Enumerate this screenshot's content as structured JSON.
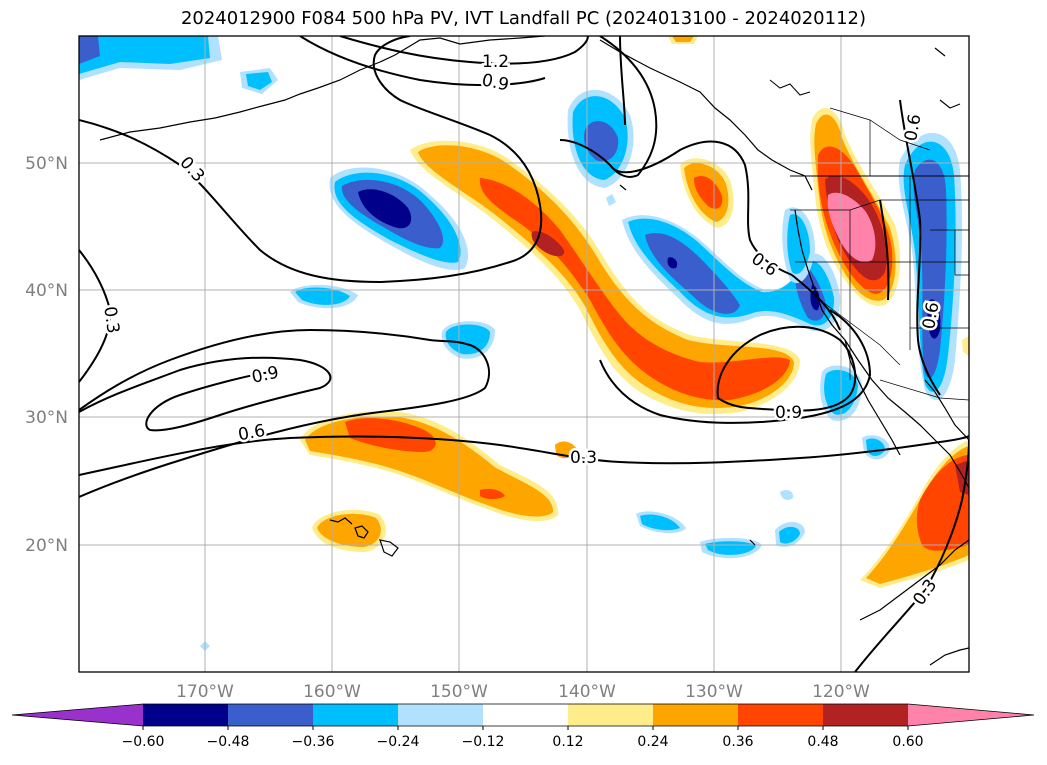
{
  "title": "2024012900 F084 500 hPa PV, IVT Landfall PC (2024013100 - 2024020112)",
  "lat_labels": [
    "50°N",
    "40°N",
    "30°N",
    "20°N"
  ],
  "lon_labels": [
    "170°W",
    "160°W",
    "150°W",
    "140°W",
    "130°W",
    "120°W"
  ],
  "contour_labels": [
    "1.2",
    "0.9",
    "0.3",
    "0.6",
    "0.6",
    "0.3",
    "0.9",
    "0.6",
    "0.3",
    "0.9",
    "0.3",
    "0.6"
  ],
  "colorbar": {
    "tick_labels": [
      "−0.60",
      "−0.48",
      "−0.36",
      "−0.24",
      "−0.12",
      "0.12",
      "0.24",
      "0.36",
      "0.48",
      "0.60"
    ],
    "colors": [
      "#9932cc",
      "#00008b",
      "#3a5fcd",
      "#00bfff",
      "#b0e2ff",
      "#ffffff",
      "#ffec8b",
      "#ffa500",
      "#ff4500",
      "#b22222",
      "#ff82ab"
    ]
  },
  "fill_colors": {
    "neg1": "#b0e2ff",
    "neg2": "#00bfff",
    "neg3": "#3a5fcd",
    "neg4": "#00008b",
    "pos1": "#ffec8b",
    "pos2": "#ffa500",
    "pos3": "#ff4500",
    "pos4": "#b22222",
    "pos5": "#ff82ab"
  }
}
